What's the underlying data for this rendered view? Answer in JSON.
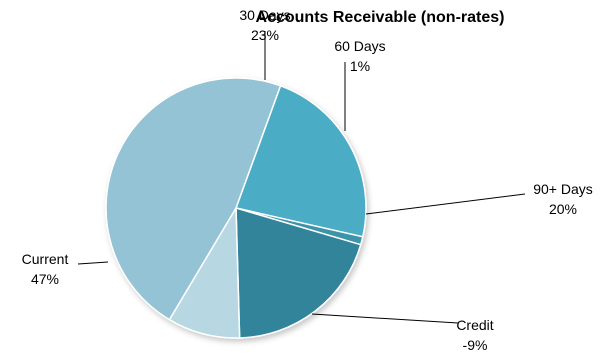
{
  "chart_data": {
    "type": "pie",
    "title": "Accounts Receivable (non-rates)",
    "slices": [
      {
        "label": "30 Days",
        "value_label": "23%",
        "value": 23,
        "color": "#4BACC6"
      },
      {
        "label": "60 Days",
        "value_label": "1%",
        "value": 1,
        "color": "#3D94A9"
      },
      {
        "label": "90+ Days",
        "value_label": "20%",
        "value": 20,
        "color": "#31849B"
      },
      {
        "label": "Credit",
        "value_label": "-9%",
        "value": -9,
        "color": "#B7D7E3"
      },
      {
        "label": "Current",
        "value_label": "47%",
        "value": 47,
        "color": "#93C3D5"
      }
    ]
  }
}
